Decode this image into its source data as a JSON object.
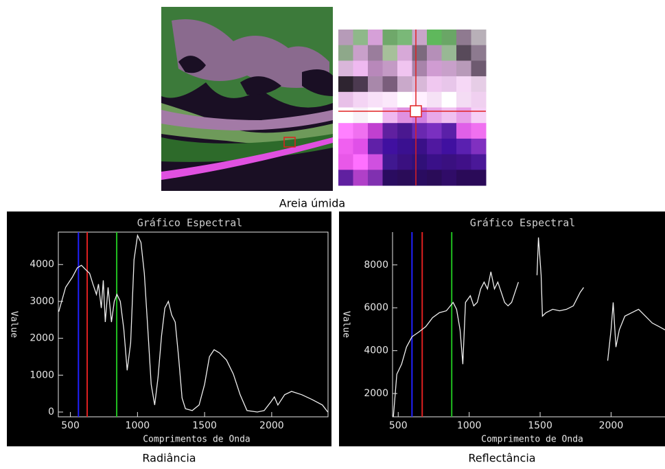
{
  "caption": "Areia úmida",
  "chart_data": [
    {
      "type": "line",
      "title": "Gráfico Espectral",
      "ylabel": "Value",
      "xlabel": "Comprimentos de Onda",
      "subtitle": "Radiância",
      "xlim": [
        410,
        2420
      ],
      "ylim": [
        -130,
        4880
      ],
      "xticks": [
        500,
        1000,
        1500,
        2000
      ],
      "yticks": [
        0,
        1000,
        2000,
        3000,
        4000
      ],
      "band_lines": [
        {
          "x": 560,
          "color": "#2020ff"
        },
        {
          "x": 625,
          "color": "#e02020"
        },
        {
          "x": 845,
          "color": "#20c020"
        }
      ],
      "series": [
        {
          "color": "#f0f0f0",
          "x": [
            413,
            464,
            515,
            551,
            582,
            617,
            643,
            668,
            694,
            709,
            730,
            745,
            760,
            781,
            806,
            827,
            847,
            872,
            898,
            923,
            949,
            974,
            1000,
            1026,
            1051,
            1077,
            1102,
            1128,
            1153,
            1179,
            1204,
            1230,
            1255,
            1281,
            1306,
            1332,
            1357,
            1408,
            1459,
            1500,
            1536,
            1571,
            1612,
            1663,
            1714,
            1765,
            1816,
            1893,
            1944,
            1995,
            2020,
            2046,
            2097,
            2148,
            2224,
            2301,
            2378,
            2418
          ],
          "values": [
            2720,
            3380,
            3660,
            3910,
            3980,
            3850,
            3760,
            3470,
            3190,
            3470,
            2820,
            3570,
            2440,
            3380,
            2440,
            3000,
            3190,
            3000,
            2250,
            1130,
            1880,
            4130,
            4790,
            4600,
            3760,
            2250,
            750,
            190,
            940,
            2070,
            2820,
            3000,
            2630,
            2440,
            1500,
            380,
            90,
            40,
            190,
            750,
            1500,
            1690,
            1600,
            1410,
            1030,
            470,
            40,
            0,
            40,
            280,
            410,
            190,
            470,
            560,
            470,
            340,
            190,
            0
          ]
        }
      ]
    },
    {
      "type": "line",
      "title": "Gráfico Espectral",
      "ylabel": "Value",
      "xlabel": "Comprimento de Onda",
      "subtitle": "Reflectância",
      "xlim": [
        460,
        2380
      ],
      "ylim": [
        915,
        9530
      ],
      "xticks": [
        500,
        1000,
        1500,
        2000
      ],
      "yticks": [
        2000,
        4000,
        6000,
        8000
      ],
      "band_lines": [
        {
          "x": 597,
          "color": "#2020ff"
        },
        {
          "x": 669,
          "color": "#e02020"
        },
        {
          "x": 877,
          "color": "#20c020"
        }
      ],
      "series": [
        {
          "color": "#f0f0f0",
          "x": [
            466,
            490,
            524,
            558,
            597,
            645,
            694,
            742,
            790,
            839,
            887,
            911,
            936,
            955,
            974,
            1008,
            1032,
            1057,
            1081,
            1105,
            1129,
            1153,
            1178,
            1202,
            1226,
            1250,
            1274,
            1299,
            1323,
            1347,
            1410,
            1478,
            1488,
            1497,
            1507,
            1516,
            1541,
            1589,
            1637,
            1686,
            1734,
            1782,
            1807,
            1890,
            1976,
            2000,
            2015,
            2034,
            2058,
            2097,
            2145,
            2194,
            2242,
            2290,
            2339,
            2380
          ],
          "values": [
            920,
            2900,
            3370,
            4170,
            4650,
            4870,
            5120,
            5540,
            5770,
            5860,
            6250,
            5930,
            4970,
            3370,
            6250,
            6560,
            6090,
            6250,
            6880,
            7200,
            6880,
            7680,
            6880,
            7200,
            6720,
            6250,
            6090,
            6250,
            6720,
            7200,
            null,
            7520,
            9280,
            8480,
            7520,
            5610,
            5770,
            5930,
            5860,
            5930,
            6090,
            6720,
            6950,
            null,
            3530,
            4970,
            6250,
            4170,
            4970,
            5610,
            5770,
            5930,
            5610,
            5290,
            5120,
            4970
          ]
        }
      ]
    }
  ]
}
